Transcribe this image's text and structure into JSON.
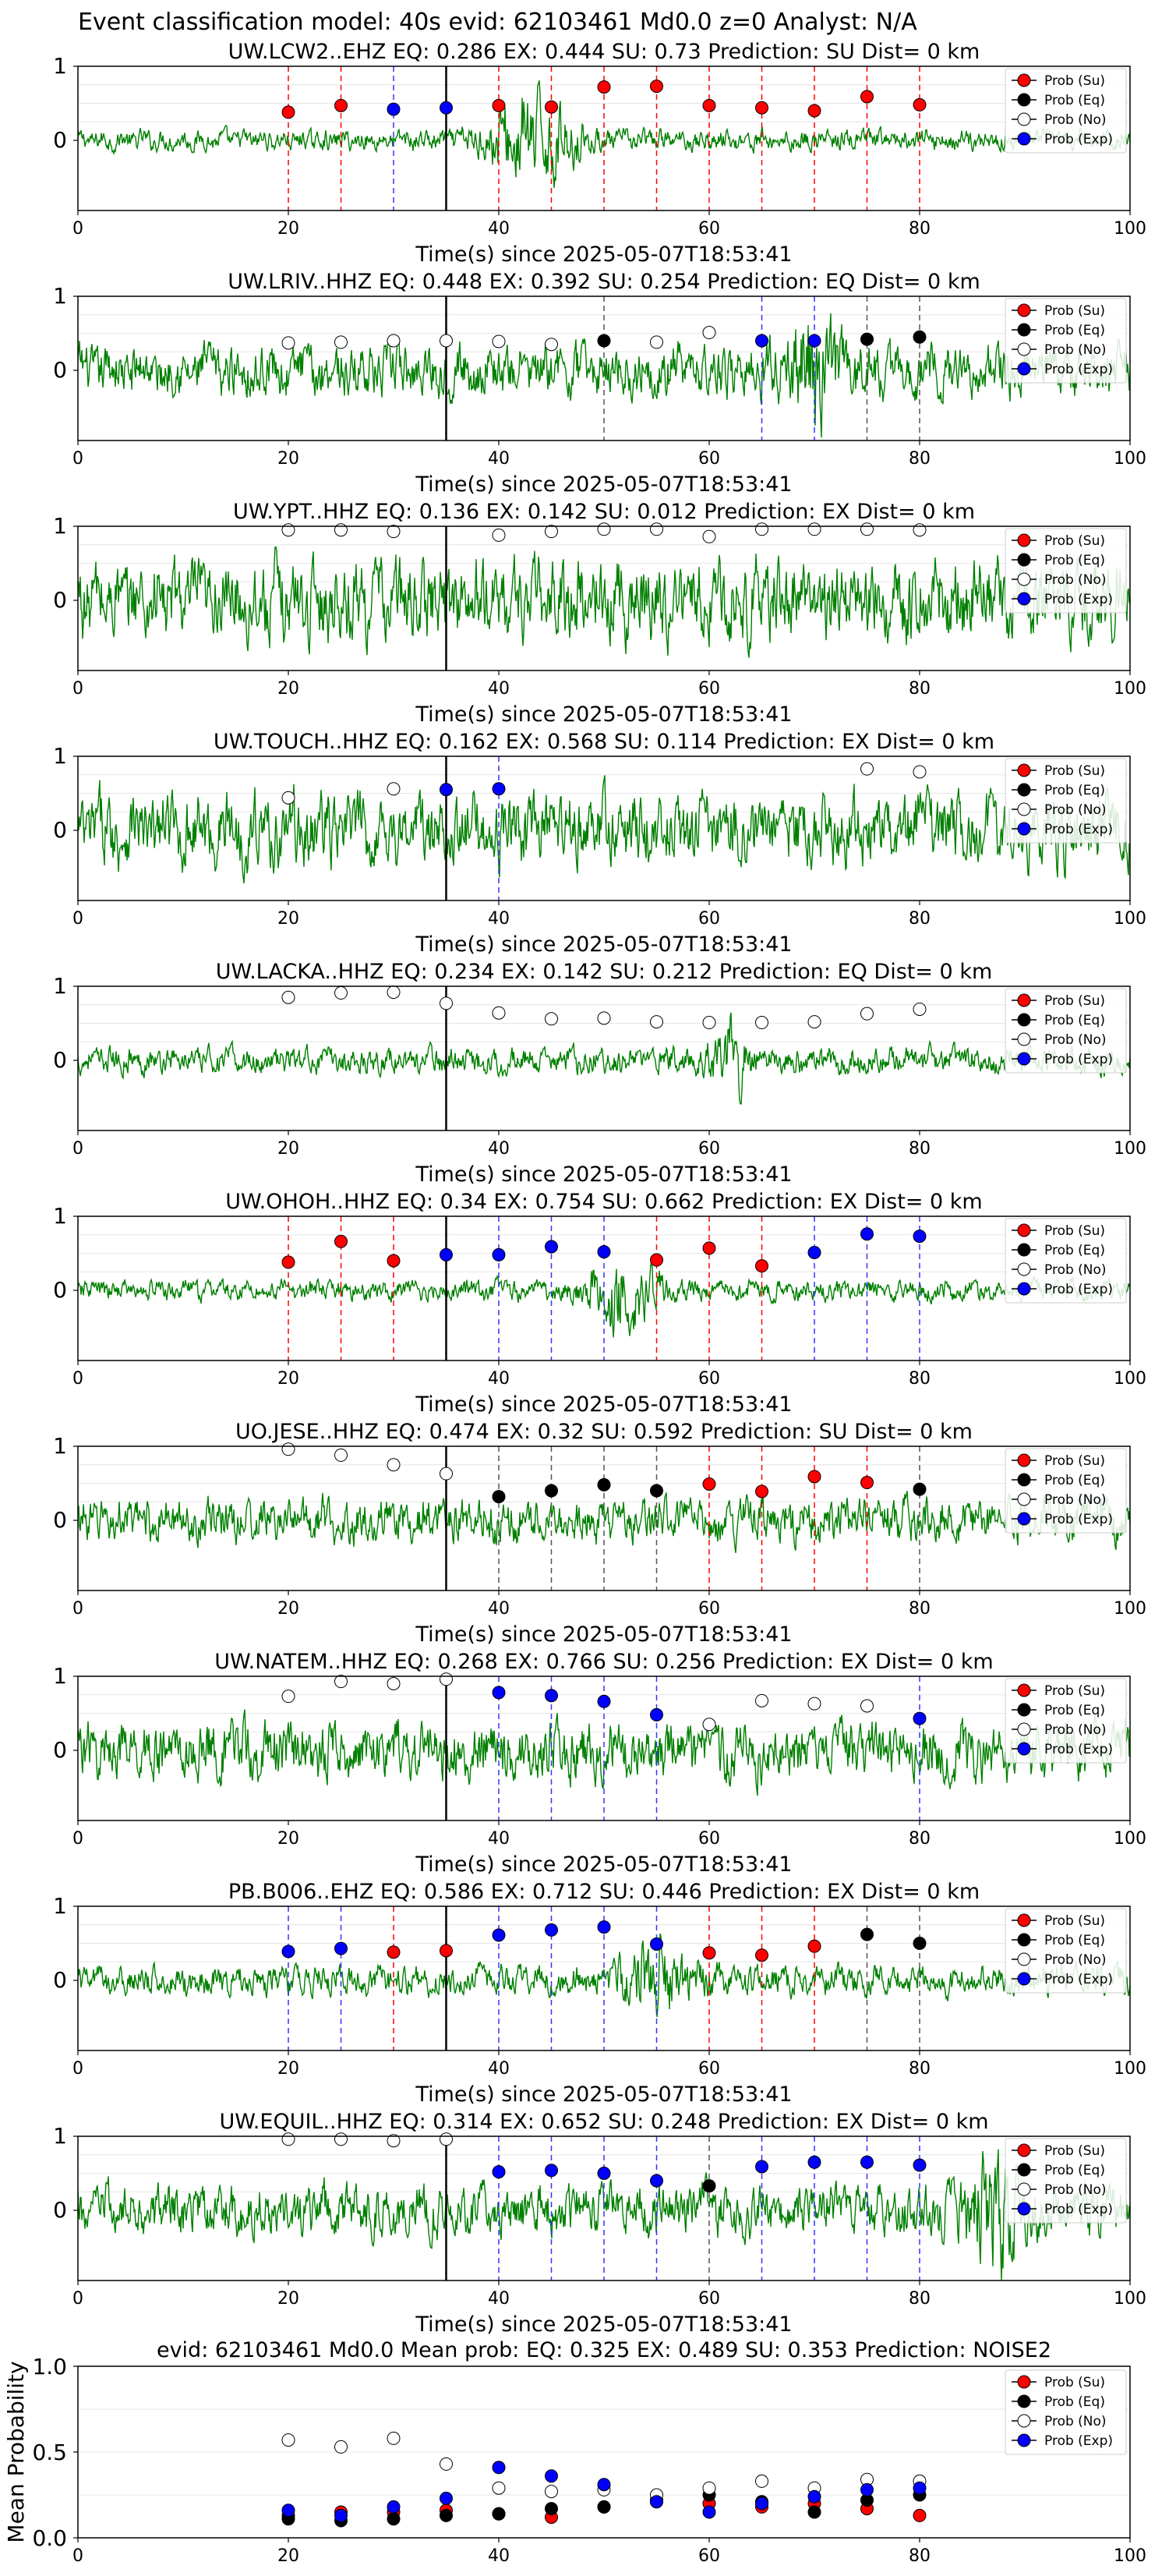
{
  "figure_title": "Event classification model: 40s evid: 62103461 Md0.0 z=0 Analyst: N/A",
  "legend_labels": [
    "Prob (Su)",
    "Prob (Eq)",
    "Prob (No)",
    "Prob (Exp)"
  ],
  "colors": {
    "su": "#ff0000",
    "eq": "#000000",
    "no": "#ffffff",
    "exp": "#0000ff",
    "wave": "#008000",
    "su_line": "#ff0000",
    "eq_line": "#555555",
    "exp_line": "#3333ff"
  },
  "chart_data": [
    {
      "type": "line",
      "title": "UW.LCW2..EHZ   EQ: 0.286  EX: 0.444  SU: 0.73   Prediction: SU    Dist= 0 km",
      "xlabel": "Time(s) since 2025-05-07T18:53:41",
      "xlim": [
        0,
        100
      ],
      "xticks": [
        0,
        20,
        40,
        60,
        80,
        100
      ],
      "yticks": [
        0,
        1
      ],
      "wave": {
        "amp": 0.14,
        "burst_center": 43,
        "burst_width": 4,
        "burst_amp": 0.55
      },
      "points": [
        [
          20,
          "su",
          0.38
        ],
        [
          25,
          "su",
          0.47
        ],
        [
          30,
          "exp",
          0.42
        ],
        [
          35,
          "exp",
          0.44
        ],
        [
          40,
          "su",
          0.47
        ],
        [
          45,
          "su",
          0.45
        ],
        [
          50,
          "su",
          0.72
        ],
        [
          55,
          "su",
          0.73
        ],
        [
          60,
          "su",
          0.47
        ],
        [
          65,
          "su",
          0.44
        ],
        [
          70,
          "su",
          0.4
        ],
        [
          75,
          "su",
          0.59
        ],
        [
          80,
          "su",
          0.48
        ]
      ]
    },
    {
      "type": "line",
      "title": "UW.LRIV..HHZ   EQ: 0.448  EX: 0.392  SU: 0.254   Prediction: EQ    Dist= 0 km",
      "xlabel": "Time(s) since 2025-05-07T18:53:41",
      "xlim": [
        0,
        100
      ],
      "xticks": [
        0,
        20,
        40,
        60,
        80,
        100
      ],
      "yticks": [
        0,
        1
      ],
      "wave": {
        "amp": 0.35,
        "burst_center": 70,
        "burst_width": 3,
        "burst_amp": 0.5
      },
      "points": [
        [
          20,
          "no",
          0.37
        ],
        [
          25,
          "no",
          0.38
        ],
        [
          30,
          "no",
          0.4
        ],
        [
          35,
          "no",
          0.4
        ],
        [
          40,
          "no",
          0.39
        ],
        [
          45,
          "no",
          0.35
        ],
        [
          50,
          "eq",
          0.4
        ],
        [
          55,
          "no",
          0.38
        ],
        [
          60,
          "no",
          0.51
        ],
        [
          65,
          "exp",
          0.4
        ],
        [
          70,
          "exp",
          0.4
        ],
        [
          75,
          "eq",
          0.42
        ],
        [
          80,
          "eq",
          0.45
        ]
      ]
    },
    {
      "type": "line",
      "title": "UW.YPT..HHZ   EQ: 0.136  EX: 0.142  SU: 0.012   Prediction: EX    Dist= 0 km",
      "xlabel": "Time(s) since 2025-05-07T18:53:41",
      "xlim": [
        0,
        100
      ],
      "xticks": [
        0,
        20,
        40,
        60,
        80,
        100
      ],
      "yticks": [
        0,
        1
      ],
      "wave": {
        "amp": 0.55,
        "burst_center": 50,
        "burst_width": 0,
        "burst_amp": 0
      },
      "points": [
        [
          20,
          "no",
          0.95
        ],
        [
          25,
          "no",
          0.95
        ],
        [
          30,
          "no",
          0.93
        ],
        [
          40,
          "no",
          0.88
        ],
        [
          45,
          "no",
          0.93
        ],
        [
          50,
          "no",
          0.96
        ],
        [
          55,
          "no",
          0.96
        ],
        [
          60,
          "no",
          0.86
        ],
        [
          65,
          "no",
          0.96
        ],
        [
          70,
          "no",
          0.96
        ],
        [
          75,
          "no",
          0.96
        ],
        [
          80,
          "no",
          0.95
        ]
      ]
    },
    {
      "type": "line",
      "title": "UW.TOUCH..HHZ   EQ: 0.162  EX: 0.568  SU: 0.114   Prediction: EX    Dist= 0 km",
      "xlabel": "Time(s) since 2025-05-07T18:53:41",
      "xlim": [
        0,
        100
      ],
      "xticks": [
        0,
        20,
        40,
        60,
        80,
        100
      ],
      "yticks": [
        0,
        1
      ],
      "wave": {
        "amp": 0.5,
        "burst_center": 50,
        "burst_width": 0,
        "burst_amp": 0
      },
      "points": [
        [
          20,
          "no",
          0.44
        ],
        [
          30,
          "no",
          0.56
        ],
        [
          35,
          "exp",
          0.55
        ],
        [
          40,
          "exp",
          0.56
        ],
        [
          75,
          "no",
          0.83
        ],
        [
          80,
          "no",
          0.79
        ]
      ]
    },
    {
      "type": "line",
      "title": "UW.LACKA..HHZ   EQ: 0.234  EX: 0.142  SU: 0.212   Prediction: EQ    Dist= 0 km",
      "xlabel": "Time(s) since 2025-05-07T18:53:41",
      "xlim": [
        0,
        100
      ],
      "xticks": [
        0,
        20,
        40,
        60,
        80,
        100
      ],
      "yticks": [
        0,
        1
      ],
      "wave": {
        "amp": 0.18,
        "burst_center": 62,
        "burst_width": 2,
        "burst_amp": 0.4
      },
      "points": [
        [
          20,
          "no",
          0.85
        ],
        [
          25,
          "no",
          0.91
        ],
        [
          30,
          "no",
          0.92
        ],
        [
          35,
          "no",
          0.77
        ],
        [
          40,
          "no",
          0.64
        ],
        [
          45,
          "no",
          0.56
        ],
        [
          50,
          "no",
          0.57
        ],
        [
          55,
          "no",
          0.52
        ],
        [
          60,
          "no",
          0.51
        ],
        [
          65,
          "no",
          0.51
        ],
        [
          70,
          "no",
          0.52
        ],
        [
          75,
          "no",
          0.63
        ],
        [
          80,
          "no",
          0.69
        ]
      ]
    },
    {
      "type": "line",
      "title": "UW.OHOH..HHZ   EQ: 0.34  EX: 0.754  SU: 0.662   Prediction: EX    Dist= 0 km",
      "xlabel": "Time(s) since 2025-05-07T18:53:41",
      "xlim": [
        0,
        100
      ],
      "xticks": [
        0,
        20,
        40,
        60,
        80,
        100
      ],
      "yticks": [
        0,
        1
      ],
      "wave": {
        "amp": 0.14,
        "burst_center": 52,
        "burst_width": 3,
        "burst_amp": 0.45
      },
      "points": [
        [
          20,
          "su",
          0.38
        ],
        [
          25,
          "su",
          0.66
        ],
        [
          30,
          "su",
          0.4
        ],
        [
          35,
          "exp",
          0.48
        ],
        [
          40,
          "exp",
          0.48
        ],
        [
          45,
          "exp",
          0.59
        ],
        [
          50,
          "exp",
          0.52
        ],
        [
          55,
          "su",
          0.41
        ],
        [
          60,
          "su",
          0.57
        ],
        [
          65,
          "su",
          0.33
        ],
        [
          70,
          "exp",
          0.51
        ],
        [
          75,
          "exp",
          0.76
        ],
        [
          80,
          "exp",
          0.73
        ]
      ]
    },
    {
      "type": "line",
      "title": "UO.JESE..HHZ   EQ: 0.474  EX: 0.32  SU: 0.592   Prediction: SU    Dist= 0 km",
      "xlabel": "Time(s) since 2025-05-07T18:53:41",
      "xlim": [
        0,
        100
      ],
      "xticks": [
        0,
        20,
        40,
        60,
        80,
        100
      ],
      "yticks": [
        0,
        1
      ],
      "wave": {
        "amp": 0.3,
        "burst_center": 55,
        "burst_width": 0,
        "burst_amp": 0
      },
      "points": [
        [
          20,
          "no",
          0.96
        ],
        [
          25,
          "no",
          0.88
        ],
        [
          30,
          "no",
          0.75
        ],
        [
          35,
          "no",
          0.63
        ],
        [
          40,
          "eq",
          0.32
        ],
        [
          45,
          "eq",
          0.4
        ],
        [
          50,
          "eq",
          0.48
        ],
        [
          55,
          "eq",
          0.4
        ],
        [
          60,
          "su",
          0.49
        ],
        [
          65,
          "su",
          0.39
        ],
        [
          70,
          "su",
          0.59
        ],
        [
          75,
          "su",
          0.51
        ],
        [
          80,
          "eq",
          0.42
        ]
      ]
    },
    {
      "type": "line",
      "title": "UW.NATEM..HHZ   EQ: 0.268  EX: 0.766  SU: 0.256   Prediction: EX    Dist= 0 km",
      "xlabel": "Time(s) since 2025-05-07T18:53:41",
      "xlim": [
        0,
        100
      ],
      "xticks": [
        0,
        20,
        40,
        60,
        80,
        100
      ],
      "yticks": [
        0,
        1
      ],
      "wave": {
        "amp": 0.4,
        "burst_center": 50,
        "burst_width": 0,
        "burst_amp": 0
      },
      "points": [
        [
          20,
          "no",
          0.73
        ],
        [
          25,
          "no",
          0.93
        ],
        [
          30,
          "no",
          0.9
        ],
        [
          35,
          "no",
          0.96
        ],
        [
          40,
          "exp",
          0.78
        ],
        [
          45,
          "exp",
          0.74
        ],
        [
          50,
          "exp",
          0.66
        ],
        [
          55,
          "exp",
          0.48
        ],
        [
          60,
          "no",
          0.35
        ],
        [
          65,
          "no",
          0.67
        ],
        [
          70,
          "no",
          0.63
        ],
        [
          75,
          "no",
          0.6
        ],
        [
          80,
          "exp",
          0.43
        ]
      ]
    },
    {
      "type": "line",
      "title": "PB.B006..EHZ   EQ: 0.586  EX: 0.712  SU: 0.446   Prediction: EX    Dist= 0 km",
      "xlabel": "Time(s) since 2025-05-07T18:53:41",
      "xlim": [
        0,
        100
      ],
      "xticks": [
        0,
        20,
        40,
        60,
        80,
        100
      ],
      "yticks": [
        0,
        1
      ],
      "wave": {
        "amp": 0.2,
        "burst_center": 55,
        "burst_width": 3,
        "burst_amp": 0.4
      },
      "points": [
        [
          20,
          "exp",
          0.39
        ],
        [
          25,
          "exp",
          0.43
        ],
        [
          30,
          "su",
          0.38
        ],
        [
          35,
          "su",
          0.4
        ],
        [
          40,
          "exp",
          0.61
        ],
        [
          45,
          "exp",
          0.68
        ],
        [
          50,
          "exp",
          0.72
        ],
        [
          55,
          "exp",
          0.49
        ],
        [
          60,
          "su",
          0.37
        ],
        [
          65,
          "su",
          0.34
        ],
        [
          70,
          "su",
          0.46
        ],
        [
          75,
          "eq",
          0.62
        ],
        [
          80,
          "eq",
          0.5
        ]
      ]
    },
    {
      "type": "line",
      "title": "UW.EQUIL..HHZ   EQ: 0.314  EX: 0.652  SU: 0.248   Prediction: EX    Dist= 0 km",
      "xlabel": "Time(s) since 2025-05-07T18:53:41",
      "xlim": [
        0,
        100
      ],
      "xticks": [
        0,
        20,
        40,
        60,
        80,
        100
      ],
      "yticks": [
        0,
        1
      ],
      "wave": {
        "amp": 0.35,
        "burst_center": 87,
        "burst_width": 3,
        "burst_amp": 0.55
      },
      "points": [
        [
          20,
          "no",
          0.96
        ],
        [
          25,
          "no",
          0.96
        ],
        [
          30,
          "no",
          0.94
        ],
        [
          35,
          "no",
          0.96
        ],
        [
          40,
          "exp",
          0.52
        ],
        [
          45,
          "exp",
          0.54
        ],
        [
          50,
          "exp",
          0.5
        ],
        [
          55,
          "exp",
          0.4
        ],
        [
          60,
          "eq",
          0.33
        ],
        [
          65,
          "exp",
          0.59
        ],
        [
          70,
          "exp",
          0.65
        ],
        [
          75,
          "exp",
          0.65
        ],
        [
          80,
          "exp",
          0.61
        ]
      ]
    },
    {
      "type": "scatter",
      "title": "evid: 62103461   Md0.0   Mean prob:    EQ: 0.325   EX: 0.489   SU: 0.353    Prediction: NOISE2",
      "ylabel": "Mean Probability",
      "xlim": [
        0,
        100
      ],
      "ylim": [
        0,
        1
      ],
      "xticks": [
        0,
        20,
        40,
        60,
        80,
        100
      ],
      "yticks": [
        0.0,
        0.5,
        1.0
      ],
      "series": [
        {
          "name": "Prob (Su)",
          "key": "su",
          "x": [
            20,
            25,
            30,
            35,
            40,
            45,
            50,
            55,
            60,
            65,
            70,
            75,
            80
          ],
          "y": [
            0.13,
            0.15,
            0.15,
            0.16,
            0.14,
            0.12,
            0.18,
            0.22,
            0.2,
            0.18,
            0.2,
            0.17,
            0.13
          ]
        },
        {
          "name": "Prob (Eq)",
          "key": "eq",
          "x": [
            20,
            25,
            30,
            35,
            40,
            45,
            50,
            55,
            60,
            65,
            70,
            75,
            80
          ],
          "y": [
            0.11,
            0.1,
            0.11,
            0.13,
            0.14,
            0.17,
            0.18,
            0.21,
            0.25,
            0.21,
            0.15,
            0.22,
            0.25
          ]
        },
        {
          "name": "Prob (No)",
          "key": "no",
          "x": [
            20,
            25,
            30,
            35,
            40,
            45,
            50,
            55,
            60,
            65,
            70,
            75,
            80
          ],
          "y": [
            0.57,
            0.53,
            0.58,
            0.43,
            0.29,
            0.27,
            0.28,
            0.25,
            0.29,
            0.33,
            0.29,
            0.34,
            0.33
          ]
        },
        {
          "name": "Prob (Exp)",
          "key": "exp",
          "x": [
            20,
            25,
            30,
            35,
            40,
            45,
            50,
            55,
            60,
            65,
            70,
            75,
            80
          ],
          "y": [
            0.16,
            0.13,
            0.18,
            0.23,
            0.41,
            0.36,
            0.31,
            0.21,
            0.15,
            0.2,
            0.24,
            0.28,
            0.29
          ]
        }
      ]
    }
  ]
}
